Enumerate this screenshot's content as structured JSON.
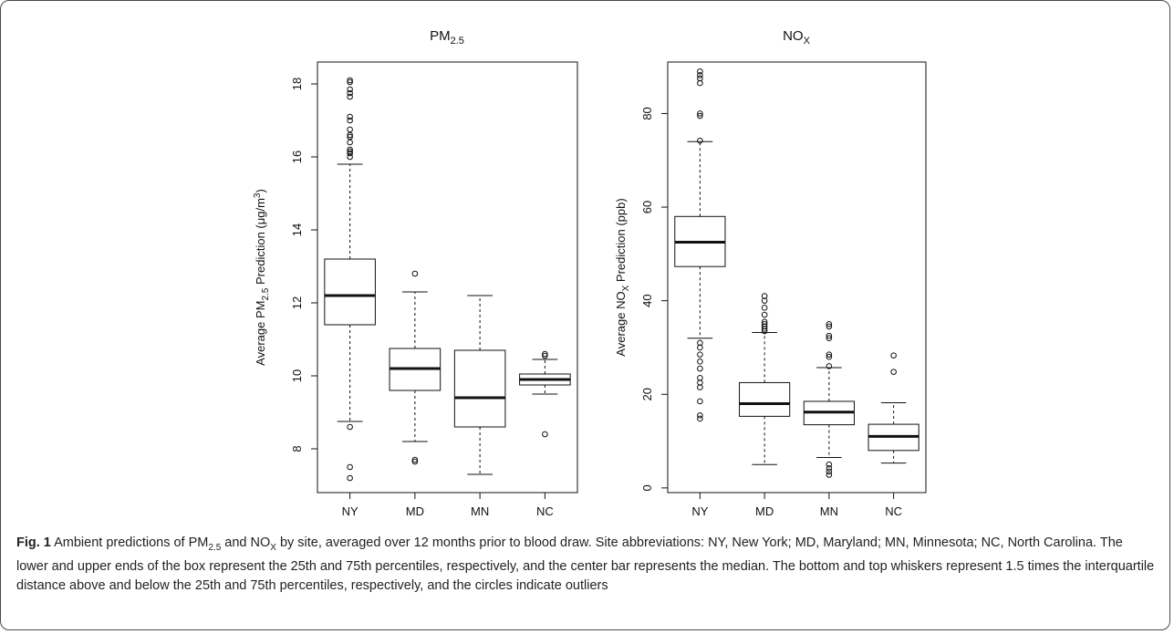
{
  "chart_data": [
    {
      "type": "box",
      "title": "PM",
      "title_sub": "2.5",
      "ylabel": {
        "pre": "Average PM",
        "sub": "2.5",
        "mid": " Prediction (μg/m",
        "sup": "3",
        "post": ")"
      },
      "xlabel": "",
      "categories": [
        "NY",
        "MD",
        "MN",
        "NC"
      ],
      "ylim": [
        6.8,
        18.6
      ],
      "yticks": [
        8,
        10,
        12,
        14,
        16,
        18
      ],
      "grid": false,
      "boxes": [
        {
          "category": "NY",
          "q1": 11.4,
          "median": 12.2,
          "q3": 13.2,
          "whisker_low": 8.75,
          "whisker_high": 15.8,
          "outliers": [
            7.2,
            7.5,
            8.6,
            16.0,
            16.1,
            16.15,
            16.2,
            16.4,
            16.55,
            16.6,
            16.75,
            17.0,
            17.1,
            17.65,
            17.75,
            17.85,
            18.05,
            18.1
          ]
        },
        {
          "category": "MD",
          "q1": 9.6,
          "median": 10.2,
          "q3": 10.75,
          "whisker_low": 8.2,
          "whisker_high": 12.3,
          "outliers": [
            7.65,
            7.7,
            12.8
          ]
        },
        {
          "category": "MN",
          "q1": 8.6,
          "median": 9.4,
          "q3": 10.7,
          "whisker_low": 7.3,
          "whisker_high": 12.2,
          "outliers": []
        },
        {
          "category": "NC",
          "q1": 9.75,
          "median": 9.9,
          "q3": 10.05,
          "whisker_low": 9.5,
          "whisker_high": 10.45,
          "outliers": [
            8.4,
            10.55,
            10.6
          ]
        }
      ]
    },
    {
      "type": "box",
      "title": "NO",
      "title_sub": "X",
      "ylabel": {
        "pre": "Average NO",
        "sub": "X",
        "mid": " Prediction (ppb)",
        "sup": "",
        "post": ""
      },
      "xlabel": "",
      "categories": [
        "NY",
        "MD",
        "MN",
        "NC"
      ],
      "ylim": [
        -1,
        91
      ],
      "yticks": [
        0,
        20,
        40,
        60,
        80
      ],
      "grid": false,
      "boxes": [
        {
          "category": "NY",
          "q1": 47.3,
          "median": 52.5,
          "q3": 58.0,
          "whisker_low": 32.0,
          "whisker_high": 74.0,
          "outliers": [
            14.8,
            15.5,
            18.5,
            21.5,
            22.5,
            23.5,
            25.5,
            27.0,
            28.5,
            30.0,
            31.0,
            74.2,
            79.5,
            80.0,
            86.5,
            87.5,
            88.2,
            89.0
          ]
        },
        {
          "category": "MD",
          "q1": 15.3,
          "median": 18.0,
          "q3": 22.5,
          "whisker_low": 5.0,
          "whisker_high": 33.2,
          "outliers": [
            33.5,
            34.0,
            34.5,
            35.0,
            35.5,
            37.0,
            38.5,
            40.0,
            41.0
          ]
        },
        {
          "category": "MN",
          "q1": 13.5,
          "median": 16.2,
          "q3": 18.5,
          "whisker_low": 6.5,
          "whisker_high": 25.7,
          "outliers": [
            2.8,
            3.5,
            4.2,
            5.0,
            26.0,
            28.0,
            28.5,
            32.0,
            32.5,
            34.5,
            35.0
          ]
        },
        {
          "category": "NC",
          "q1": 8.0,
          "median": 11.0,
          "q3": 13.6,
          "whisker_low": 5.3,
          "whisker_high": 18.2,
          "outliers": [
            24.8,
            28.3
          ]
        }
      ]
    }
  ],
  "caption": {
    "label": "Fig. 1",
    "parts": [
      {
        "t": " Ambient predictions of PM"
      },
      {
        "sub": "2.5"
      },
      {
        "t": " and NO"
      },
      {
        "sub": "X"
      },
      {
        "t": " by site, averaged over 12 months prior to blood draw. Site abbreviations: NY, New York; MD, Maryland; MN, Minnesota; NC, North Carolina. The lower and upper ends of the box represent the 25th and 75th percentiles, respectively, and the center bar represents the median. The bottom and top whiskers represent 1.5 times the interquartile distance above and below the 25th and 75th percentiles, respectively, and the circles indicate outliers"
      }
    ]
  }
}
